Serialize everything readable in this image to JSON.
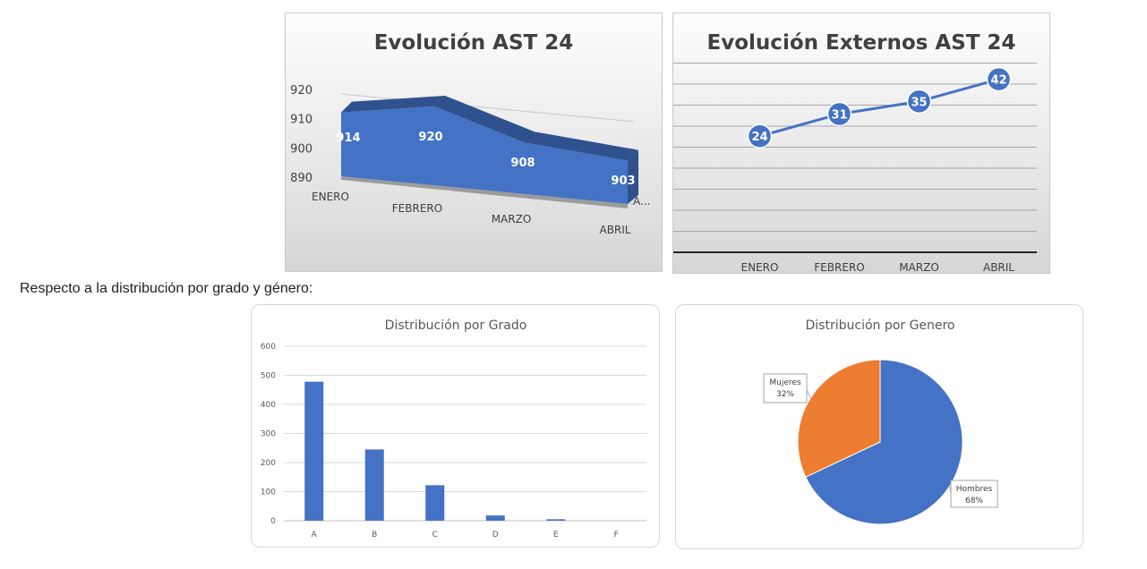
{
  "intro_text": "Respecto a la distribución por grado y género:",
  "chart_data": [
    {
      "type": "area",
      "title": "Evolución AST 24",
      "categories": [
        "ENERO",
        "FEBRERO",
        "MARZO",
        "ABRIL"
      ],
      "values": [
        914,
        920,
        908,
        903
      ],
      "data_labels": [
        "914",
        "920",
        "908",
        "903"
      ],
      "y_ticks": [
        "890",
        "900",
        "910",
        "920"
      ],
      "ylim": [
        890,
        920
      ],
      "extra_label": "A...",
      "color": "#4472c4"
    },
    {
      "type": "line",
      "title": "Evolución Externos AST 24",
      "categories": [
        "ENERO",
        "FEBRERO",
        "MARZO",
        "ABRIL"
      ],
      "values": [
        24,
        31,
        35,
        42
      ],
      "data_labels": [
        "24",
        "31",
        "35",
        "42"
      ],
      "grid": true,
      "color": "#4472c4"
    },
    {
      "type": "bar",
      "title": "Distribución por Grado",
      "categories": [
        "A",
        "B",
        "C",
        "D",
        "E",
        "F"
      ],
      "values": [
        478,
        245,
        122,
        18,
        5,
        0
      ],
      "y_ticks": [
        "0",
        "100",
        "200",
        "300",
        "400",
        "500",
        "600"
      ],
      "ylim": [
        0,
        600
      ],
      "grid": true,
      "color": "#4472c4"
    },
    {
      "type": "pie",
      "title": "Distribución por Genero",
      "slices": [
        {
          "name": "Hombres",
          "value": 68,
          "label": "68%",
          "color": "#4472c4"
        },
        {
          "name": "Mujeres",
          "value": 32,
          "label": "32%",
          "color": "#ed7d31"
        }
      ]
    }
  ]
}
